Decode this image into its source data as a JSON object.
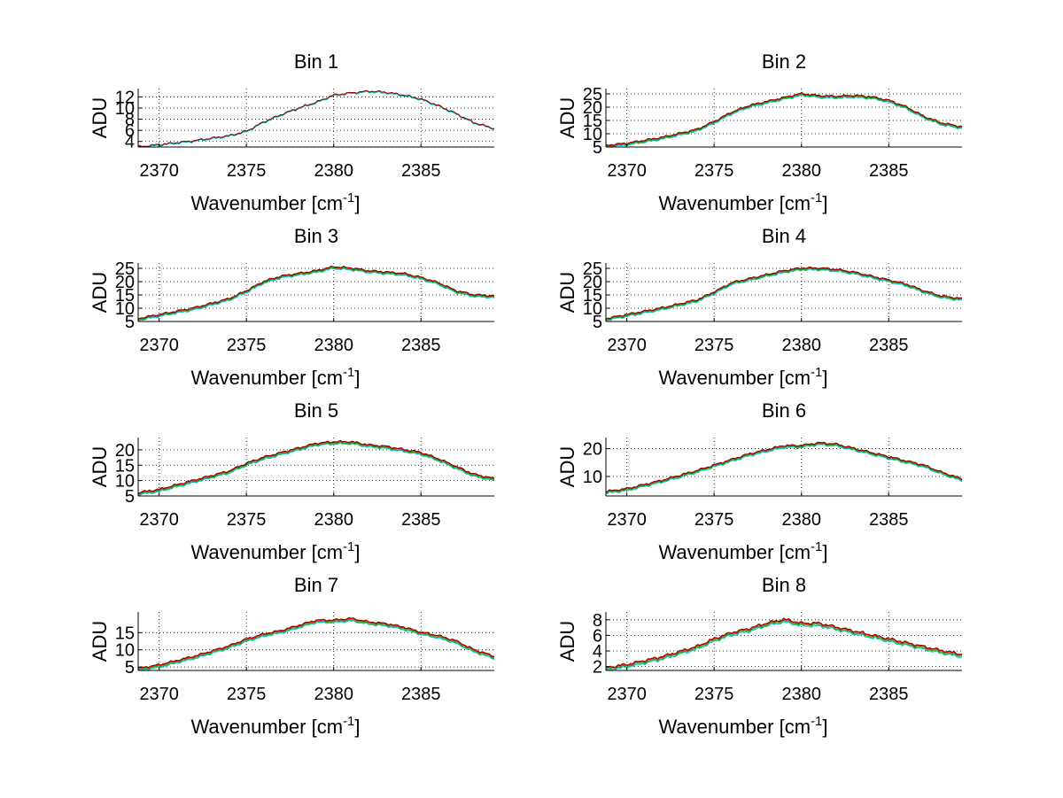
{
  "chart_data": [
    {
      "type": "line",
      "title": "Bin 1",
      "xlabel": "Wavenumber [cm",
      "xlabel_sup": "-1",
      "xlabel_end": "]",
      "ylabel": "ADU",
      "xlim": [
        2368.8,
        2389.2
      ],
      "ylim": [
        3,
        13.5
      ],
      "xticks": [
        2370,
        2375,
        2380,
        2385
      ],
      "yticks": [
        4,
        6,
        8,
        10,
        12
      ],
      "grid": true,
      "series": [
        {
          "name": "red",
          "color": "#ff0000",
          "offset": 0
        },
        {
          "name": "green",
          "color": "#00aa00",
          "offset": -0.05
        },
        {
          "name": "cyan",
          "color": "#00bfbf",
          "offset": -0.1
        },
        {
          "name": "dark-red",
          "color": "#8b0000",
          "offset": 0.05
        }
      ],
      "profile": {
        "x": [
          2368.8,
          2370,
          2372,
          2374,
          2375,
          2376,
          2377,
          2378,
          2379,
          2380,
          2381,
          2382,
          2383,
          2384,
          2385,
          2386,
          2387,
          2388,
          2389.2
        ],
        "y": [
          3.0,
          3.4,
          4.1,
          5.0,
          5.8,
          7.5,
          8.8,
          10.0,
          11.0,
          12.3,
          12.7,
          13.0,
          12.8,
          12.3,
          11.6,
          10.4,
          9.0,
          7.4,
          6.3
        ]
      },
      "noise": 0.22
    },
    {
      "type": "line",
      "title": "Bin 2",
      "xlabel": "Wavenumber [cm",
      "xlabel_sup": "-1",
      "xlabel_end": "]",
      "ylabel": "ADU",
      "xlim": [
        2368.8,
        2389.2
      ],
      "ylim": [
        5,
        27
      ],
      "xticks": [
        2370,
        2375,
        2380,
        2385
      ],
      "yticks": [
        5,
        10,
        15,
        20,
        25
      ],
      "grid": true,
      "series": [
        {
          "name": "red",
          "color": "#ff0000",
          "offset": 0
        },
        {
          "name": "green",
          "color": "#00aa00",
          "offset": -0.3
        },
        {
          "name": "cyan",
          "color": "#00bfbf",
          "offset": -0.6
        },
        {
          "name": "dark-red",
          "color": "#8b0000",
          "offset": 0.2
        }
      ],
      "profile": {
        "x": [
          2368.8,
          2370,
          2372,
          2374,
          2375,
          2376,
          2377,
          2378,
          2379,
          2380,
          2381,
          2382,
          2383,
          2384,
          2385,
          2386,
          2387,
          2388,
          2389.2
        ],
        "y": [
          5.5,
          6.3,
          8.5,
          11.5,
          14.5,
          18.0,
          20.5,
          22.0,
          23.5,
          25.0,
          24.2,
          24.0,
          24.3,
          23.8,
          22.5,
          20.0,
          16.5,
          14.0,
          12.5
        ]
      },
      "noise": 0.45
    },
    {
      "type": "line",
      "title": "Bin 3",
      "xlabel": "Wavenumber [cm",
      "xlabel_sup": "-1",
      "xlabel_end": "]",
      "ylabel": "ADU",
      "xlim": [
        2368.8,
        2389.2
      ],
      "ylim": [
        5,
        27
      ],
      "xticks": [
        2370,
        2375,
        2380,
        2385
      ],
      "yticks": [
        5,
        10,
        15,
        20,
        25
      ],
      "grid": true,
      "series": [
        {
          "name": "red",
          "color": "#ff0000",
          "offset": 0
        },
        {
          "name": "green",
          "color": "#00aa00",
          "offset": -0.3
        },
        {
          "name": "cyan",
          "color": "#00bfbf",
          "offset": -0.6
        },
        {
          "name": "dark-red",
          "color": "#8b0000",
          "offset": 0.2
        }
      ],
      "profile": {
        "x": [
          2368.8,
          2370,
          2372,
          2374,
          2375,
          2376,
          2377,
          2378,
          2379,
          2380,
          2381,
          2382,
          2383,
          2384,
          2385,
          2386,
          2387,
          2388,
          2389.2
        ],
        "y": [
          6.0,
          7.5,
          10.0,
          13.5,
          16.5,
          20.0,
          22.0,
          23.0,
          24.0,
          25.5,
          25.0,
          24.0,
          23.5,
          23.0,
          21.5,
          19.5,
          16.5,
          15.0,
          14.5
        ]
      },
      "noise": 0.45
    },
    {
      "type": "line",
      "title": "Bin 4",
      "xlabel": "Wavenumber [cm",
      "xlabel_sup": "-1",
      "xlabel_end": "]",
      "ylabel": "ADU",
      "xlim": [
        2368.8,
        2389.2
      ],
      "ylim": [
        5,
        27
      ],
      "xticks": [
        2370,
        2375,
        2380,
        2385
      ],
      "yticks": [
        5,
        10,
        15,
        20,
        25
      ],
      "grid": true,
      "series": [
        {
          "name": "red",
          "color": "#ff0000",
          "offset": 0
        },
        {
          "name": "green",
          "color": "#00aa00",
          "offset": -0.3
        },
        {
          "name": "cyan",
          "color": "#00bfbf",
          "offset": -0.6
        },
        {
          "name": "dark-red",
          "color": "#8b0000",
          "offset": 0.2
        }
      ],
      "profile": {
        "x": [
          2368.8,
          2370,
          2372,
          2374,
          2375,
          2376,
          2377,
          2378,
          2379,
          2380,
          2381,
          2382,
          2383,
          2384,
          2385,
          2386,
          2387,
          2388,
          2389.2
        ],
        "y": [
          6.0,
          7.5,
          10.0,
          13.0,
          16.0,
          19.5,
          21.0,
          22.5,
          24.0,
          25.0,
          25.0,
          24.5,
          23.5,
          22.0,
          20.5,
          19.0,
          16.5,
          14.5,
          13.5
        ]
      },
      "noise": 0.45
    },
    {
      "type": "line",
      "title": "Bin 5",
      "xlabel": "Wavenumber [cm",
      "xlabel_sup": "-1",
      "xlabel_end": "]",
      "ylabel": "ADU",
      "xlim": [
        2368.8,
        2389.2
      ],
      "ylim": [
        5,
        24
      ],
      "xticks": [
        2370,
        2375,
        2380,
        2385
      ],
      "yticks": [
        5,
        10,
        15,
        20
      ],
      "grid": true,
      "series": [
        {
          "name": "red",
          "color": "#ff0000",
          "offset": 0
        },
        {
          "name": "green",
          "color": "#00aa00",
          "offset": -0.3
        },
        {
          "name": "cyan",
          "color": "#00bfbf",
          "offset": -0.6
        },
        {
          "name": "dark-red",
          "color": "#8b0000",
          "offset": 0.2
        }
      ],
      "profile": {
        "x": [
          2368.8,
          2370,
          2372,
          2374,
          2375,
          2376,
          2377,
          2378,
          2379,
          2380,
          2381,
          2382,
          2383,
          2384,
          2385,
          2386,
          2387,
          2388,
          2389.2
        ],
        "y": [
          6.0,
          7.0,
          10.0,
          13.0,
          15.5,
          17.5,
          19.0,
          20.5,
          22.0,
          22.5,
          22.5,
          21.5,
          21.0,
          20.0,
          19.0,
          17.0,
          14.5,
          12.0,
          10.5
        ]
      },
      "noise": 0.4
    },
    {
      "type": "line",
      "title": "Bin 6",
      "xlabel": "Wavenumber [cm",
      "xlabel_sup": "-1",
      "xlabel_end": "]",
      "ylabel": "ADU",
      "xlim": [
        2368.8,
        2389.2
      ],
      "ylim": [
        3,
        24
      ],
      "xticks": [
        2370,
        2375,
        2380,
        2385
      ],
      "yticks": [
        10,
        20
      ],
      "grid": true,
      "series": [
        {
          "name": "red",
          "color": "#ff0000",
          "offset": 0
        },
        {
          "name": "green",
          "color": "#00aa00",
          "offset": -0.3
        },
        {
          "name": "cyan",
          "color": "#00bfbf",
          "offset": -0.6
        },
        {
          "name": "dark-red",
          "color": "#8b0000",
          "offset": 0.2
        }
      ],
      "profile": {
        "x": [
          2368.8,
          2370,
          2372,
          2374,
          2375,
          2376,
          2377,
          2378,
          2379,
          2380,
          2381,
          2382,
          2383,
          2384,
          2385,
          2386,
          2387,
          2388,
          2389.2
        ],
        "y": [
          4.5,
          5.5,
          8.5,
          12.0,
          14.0,
          16.0,
          18.0,
          19.5,
          21.0,
          21.0,
          22.0,
          21.5,
          20.0,
          18.5,
          17.0,
          15.5,
          14.0,
          11.5,
          9.0
        ]
      },
      "noise": 0.45
    },
    {
      "type": "line",
      "title": "Bin 7",
      "xlabel": "Wavenumber [cm",
      "xlabel_sup": "-1",
      "xlabel_end": "]",
      "ylabel": "ADU",
      "xlim": [
        2368.8,
        2389.2
      ],
      "ylim": [
        4,
        21
      ],
      "xticks": [
        2370,
        2375,
        2380,
        2385
      ],
      "yticks": [
        5,
        10,
        15
      ],
      "grid": true,
      "series": [
        {
          "name": "red",
          "color": "#ff0000",
          "offset": 0
        },
        {
          "name": "green",
          "color": "#00aa00",
          "offset": -0.3
        },
        {
          "name": "cyan",
          "color": "#00bfbf",
          "offset": -0.6
        },
        {
          "name": "dark-red",
          "color": "#8b0000",
          "offset": 0.2
        }
      ],
      "profile": {
        "x": [
          2368.8,
          2370,
          2372,
          2374,
          2375,
          2376,
          2377,
          2378,
          2379,
          2380,
          2381,
          2382,
          2383,
          2384,
          2385,
          2386,
          2387,
          2388,
          2389.2
        ],
        "y": [
          4.5,
          5.5,
          8.0,
          11.0,
          13.0,
          14.5,
          15.5,
          17.0,
          18.5,
          18.5,
          19.0,
          18.0,
          17.5,
          16.5,
          15.0,
          14.0,
          12.5,
          10.0,
          8.0
        ]
      },
      "noise": 0.35
    },
    {
      "type": "line",
      "title": "Bin 8",
      "xlabel": "Wavenumber [cm",
      "xlabel_sup": "-1",
      "xlabel_end": "]",
      "ylabel": "ADU",
      "xlim": [
        2368.8,
        2389.2
      ],
      "ylim": [
        1.5,
        9
      ],
      "xticks": [
        2370,
        2375,
        2380,
        2385
      ],
      "yticks": [
        2,
        4,
        6,
        8
      ],
      "grid": true,
      "series": [
        {
          "name": "red",
          "color": "#ff0000",
          "offset": 0
        },
        {
          "name": "green",
          "color": "#00aa00",
          "offset": -0.15
        },
        {
          "name": "cyan",
          "color": "#00bfbf",
          "offset": -0.3
        },
        {
          "name": "dark-red",
          "color": "#8b0000",
          "offset": 0.1
        }
      ],
      "profile": {
        "x": [
          2368.8,
          2370,
          2372,
          2374,
          2375,
          2376,
          2377,
          2378,
          2379,
          2380,
          2381,
          2382,
          2383,
          2384,
          2385,
          2386,
          2387,
          2388,
          2389.2
        ],
        "y": [
          1.8,
          2.2,
          3.2,
          4.5,
          5.5,
          6.3,
          6.8,
          7.5,
          8.0,
          7.5,
          7.5,
          7.0,
          6.5,
          6.0,
          5.5,
          5.0,
          4.5,
          4.0,
          3.5
        ]
      },
      "noise": 0.22
    }
  ]
}
